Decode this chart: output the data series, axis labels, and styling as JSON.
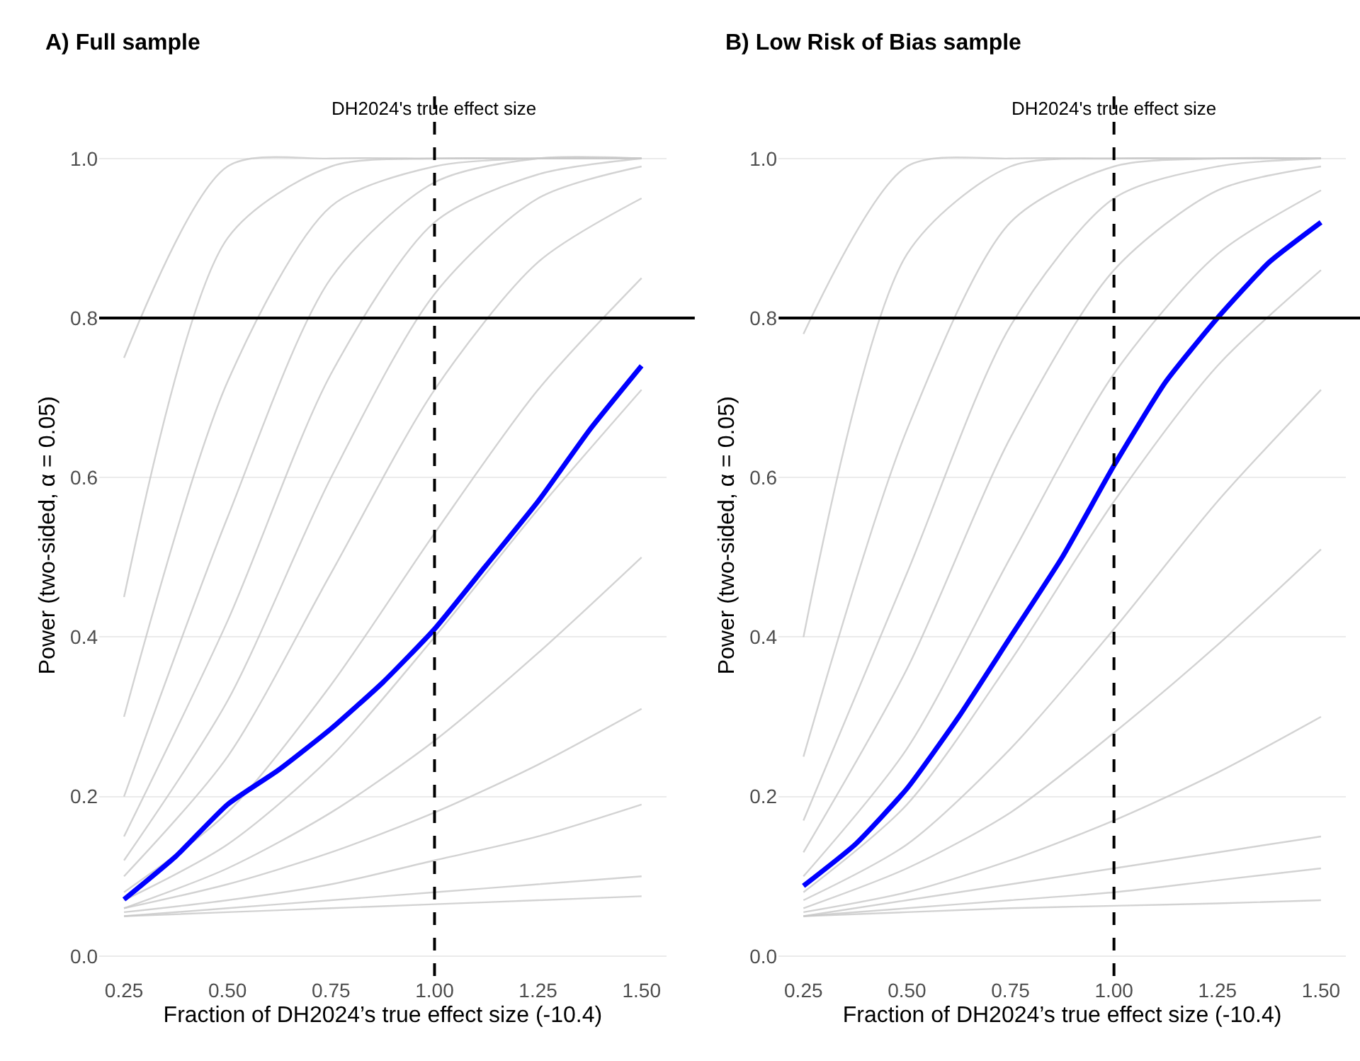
{
  "chart_data": [
    {
      "type": "line",
      "title": "A) Full sample",
      "xlabel": "Fraction of DH2024’s true effect size (-10.4)",
      "ylabel": "Power (two-sided, α = 0.05)",
      "xlim": [
        0.19,
        1.56
      ],
      "ylim": [
        -0.025,
        1.08
      ],
      "xticks": [
        {
          "value": 0.25,
          "label": "0.25"
        },
        {
          "value": 0.5,
          "label": "0.50"
        },
        {
          "value": 0.75,
          "label": "0.75"
        },
        {
          "value": 1.0,
          "label": "1.00"
        },
        {
          "value": 1.25,
          "label": "1.25"
        },
        {
          "value": 1.5,
          "label": "1.50"
        }
      ],
      "yticks": [
        {
          "value": 0,
          "label": "0.0"
        },
        {
          "value": 0.2,
          "label": "0.2"
        },
        {
          "value": 0.4,
          "label": "0.4"
        },
        {
          "value": 0.6,
          "label": "0.6"
        },
        {
          "value": 0.8,
          "label": "0.8"
        },
        {
          "value": 1.0,
          "label": "1.0"
        }
      ],
      "grid": "y",
      "line_style": "solid",
      "ref_lines": [
        {
          "axis": "x",
          "value": 1.0,
          "label": "DH2024's true effect size",
          "color": "#000000",
          "line_style": "dashed"
        },
        {
          "axis": "y",
          "value": 0.8,
          "label": null,
          "color": "#000000",
          "line_style": "solid"
        }
      ],
      "series": [
        {
          "color": "#c8c8c8",
          "x": [
            0.25,
            0.5,
            0.75,
            1.0,
            1.25,
            1.5
          ],
          "values": [
            0.75,
            0.99,
            1.0,
            1.0,
            1.0,
            1.0
          ]
        },
        {
          "color": "#c8c8c8",
          "x": [
            0.25,
            0.5,
            0.75,
            1.0,
            1.25,
            1.5
          ],
          "values": [
            0.45,
            0.9,
            0.99,
            1.0,
            1.0,
            1.0
          ]
        },
        {
          "color": "#c8c8c8",
          "x": [
            0.25,
            0.5,
            0.75,
            1.0,
            1.25,
            1.5
          ],
          "values": [
            0.3,
            0.72,
            0.94,
            0.99,
            1.0,
            1.0
          ]
        },
        {
          "color": "#c8c8c8",
          "x": [
            0.25,
            0.5,
            0.75,
            1.0,
            1.25,
            1.5
          ],
          "values": [
            0.2,
            0.55,
            0.85,
            0.97,
            1.0,
            1.0
          ]
        },
        {
          "color": "#c8c8c8",
          "x": [
            0.25,
            0.5,
            0.75,
            1.0,
            1.25,
            1.5
          ],
          "values": [
            0.15,
            0.42,
            0.73,
            0.92,
            0.98,
            1.0
          ]
        },
        {
          "color": "#c8c8c8",
          "x": [
            0.25,
            0.5,
            0.75,
            1.0,
            1.25,
            1.5
          ],
          "values": [
            0.12,
            0.32,
            0.6,
            0.83,
            0.95,
            0.99
          ]
        },
        {
          "color": "#c8c8c8",
          "x": [
            0.25,
            0.5,
            0.75,
            1.0,
            1.25,
            1.5
          ],
          "values": [
            0.1,
            0.25,
            0.48,
            0.71,
            0.87,
            0.95
          ]
        },
        {
          "color": "#c8c8c8",
          "x": [
            0.25,
            0.5,
            0.75,
            1.0,
            1.25,
            1.5
          ],
          "values": [
            0.08,
            0.18,
            0.34,
            0.53,
            0.71,
            0.85
          ]
        },
        {
          "color": "#c8c8c8",
          "x": [
            0.25,
            0.5,
            0.75,
            1.0,
            1.25,
            1.5
          ],
          "values": [
            0.07,
            0.14,
            0.25,
            0.4,
            0.56,
            0.71
          ]
        },
        {
          "color": "#c8c8c8",
          "x": [
            0.25,
            0.5,
            0.75,
            1.0,
            1.25,
            1.5
          ],
          "values": [
            0.06,
            0.11,
            0.18,
            0.27,
            0.38,
            0.5
          ]
        },
        {
          "color": "#c8c8c8",
          "x": [
            0.25,
            0.5,
            0.75,
            1.0,
            1.25,
            1.5
          ],
          "values": [
            0.06,
            0.09,
            0.13,
            0.18,
            0.24,
            0.31
          ]
        },
        {
          "color": "#c8c8c8",
          "x": [
            0.25,
            0.5,
            0.75,
            1.0,
            1.25,
            1.5
          ],
          "values": [
            0.055,
            0.07,
            0.09,
            0.12,
            0.15,
            0.19
          ]
        },
        {
          "color": "#c8c8c8",
          "x": [
            0.25,
            0.5,
            0.75,
            1.0,
            1.25,
            1.5
          ],
          "values": [
            0.05,
            0.06,
            0.07,
            0.08,
            0.09,
            0.1
          ]
        },
        {
          "color": "#c8c8c8",
          "x": [
            0.25,
            0.5,
            0.75,
            1.0,
            1.25,
            1.5
          ],
          "values": [
            0.05,
            0.055,
            0.06,
            0.065,
            0.07,
            0.075
          ]
        },
        {
          "color": "#0000ff",
          "x": [
            0.25,
            0.375,
            0.5,
            0.625,
            0.75,
            0.875,
            1.0,
            1.125,
            1.25,
            1.375,
            1.5
          ],
          "values": [
            0.071,
            0.125,
            0.19,
            0.234,
            0.285,
            0.343,
            0.41,
            0.49,
            0.57,
            0.66,
            0.74
          ]
        }
      ]
    },
    {
      "type": "line",
      "title": "B) Low Risk of Bias sample",
      "xlabel": "Fraction of DH2024’s true effect size (-10.4)",
      "ylabel": "Power (two-sided, α = 0.05)",
      "xlim": [
        0.19,
        1.56
      ],
      "ylim": [
        -0.025,
        1.08
      ],
      "xticks": [
        {
          "value": 0.25,
          "label": "0.25"
        },
        {
          "value": 0.5,
          "label": "0.50"
        },
        {
          "value": 0.75,
          "label": "0.75"
        },
        {
          "value": 1.0,
          "label": "1.00"
        },
        {
          "value": 1.25,
          "label": "1.25"
        },
        {
          "value": 1.5,
          "label": "1.50"
        }
      ],
      "yticks": [
        {
          "value": 0,
          "label": "0.0"
        },
        {
          "value": 0.2,
          "label": "0.2"
        },
        {
          "value": 0.4,
          "label": "0.4"
        },
        {
          "value": 0.6,
          "label": "0.6"
        },
        {
          "value": 0.8,
          "label": "0.8"
        },
        {
          "value": 1.0,
          "label": "1.0"
        }
      ],
      "grid": "y",
      "line_style": "solid",
      "ref_lines": [
        {
          "axis": "x",
          "value": 1.0,
          "label": "DH2024's true effect size",
          "color": "#000000",
          "line_style": "dashed"
        },
        {
          "axis": "y",
          "value": 0.8,
          "label": null,
          "color": "#000000",
          "line_style": "solid"
        }
      ],
      "series": [
        {
          "color": "#c8c8c8",
          "x": [
            0.25,
            0.5,
            0.75,
            1.0,
            1.25,
            1.5
          ],
          "values": [
            0.78,
            0.99,
            1.0,
            1.0,
            1.0,
            1.0
          ]
        },
        {
          "color": "#c8c8c8",
          "x": [
            0.25,
            0.5,
            0.75,
            1.0,
            1.25,
            1.5
          ],
          "values": [
            0.4,
            0.88,
            0.99,
            1.0,
            1.0,
            1.0
          ]
        },
        {
          "color": "#c8c8c8",
          "x": [
            0.25,
            0.5,
            0.75,
            1.0,
            1.25,
            1.5
          ],
          "values": [
            0.25,
            0.66,
            0.92,
            0.99,
            1.0,
            1.0
          ]
        },
        {
          "color": "#c8c8c8",
          "x": [
            0.25,
            0.5,
            0.75,
            1.0,
            1.25,
            1.5
          ],
          "values": [
            0.17,
            0.48,
            0.79,
            0.95,
            0.99,
            1.0
          ]
        },
        {
          "color": "#c8c8c8",
          "x": [
            0.25,
            0.5,
            0.75,
            1.0,
            1.25,
            1.5
          ],
          "values": [
            0.13,
            0.36,
            0.65,
            0.86,
            0.96,
            0.99
          ]
        },
        {
          "color": "#c8c8c8",
          "x": [
            0.25,
            0.5,
            0.75,
            1.0,
            1.25,
            1.5
          ],
          "values": [
            0.1,
            0.26,
            0.5,
            0.73,
            0.88,
            0.96
          ]
        },
        {
          "color": "#c8c8c8",
          "x": [
            0.25,
            0.5,
            0.75,
            1.0,
            1.25,
            1.5
          ],
          "values": [
            0.08,
            0.19,
            0.37,
            0.57,
            0.74,
            0.86
          ]
        },
        {
          "color": "#c8c8c8",
          "x": [
            0.25,
            0.5,
            0.75,
            1.0,
            1.25,
            1.5
          ],
          "values": [
            0.07,
            0.14,
            0.26,
            0.41,
            0.57,
            0.71
          ]
        },
        {
          "color": "#c8c8c8",
          "x": [
            0.25,
            0.5,
            0.75,
            1.0,
            1.25,
            1.5
          ],
          "values": [
            0.06,
            0.11,
            0.18,
            0.28,
            0.39,
            0.51
          ]
        },
        {
          "color": "#c8c8c8",
          "x": [
            0.25,
            0.5,
            0.75,
            1.0,
            1.25,
            1.5
          ],
          "values": [
            0.055,
            0.08,
            0.12,
            0.17,
            0.23,
            0.3
          ]
        },
        {
          "color": "#c8c8c8",
          "x": [
            0.25,
            0.5,
            0.75,
            1.0,
            1.25,
            1.5
          ],
          "values": [
            0.05,
            0.07,
            0.09,
            0.11,
            0.13,
            0.15
          ]
        },
        {
          "color": "#c8c8c8",
          "x": [
            0.25,
            0.5,
            0.75,
            1.0,
            1.25,
            1.5
          ],
          "values": [
            0.05,
            0.06,
            0.07,
            0.08,
            0.095,
            0.11
          ]
        },
        {
          "color": "#c8c8c8",
          "x": [
            0.25,
            0.5,
            0.75,
            1.0,
            1.25,
            1.5
          ],
          "values": [
            0.05,
            0.055,
            0.06,
            0.063,
            0.066,
            0.07
          ]
        },
        {
          "color": "#0000ff",
          "x": [
            0.25,
            0.375,
            0.5,
            0.625,
            0.75,
            0.875,
            1.0,
            1.125,
            1.25,
            1.375,
            1.5
          ],
          "values": [
            0.088,
            0.14,
            0.21,
            0.3,
            0.4,
            0.5,
            0.615,
            0.72,
            0.8,
            0.87,
            0.92
          ]
        }
      ]
    }
  ]
}
